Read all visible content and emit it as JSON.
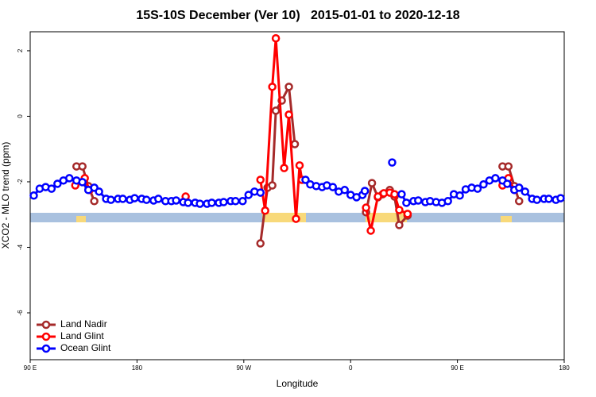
{
  "chart_data": {
    "type": "line",
    "title": "15S-10S December (Ver 10)   2015-01-01 to 2020-12-18",
    "x_label": "Longitude",
    "y_label": "XCO2 - MLO trend (ppm)",
    "xlim": [
      90,
      540
    ],
    "ylim": [
      -7.43,
      2.58
    ],
    "xticks": [
      {
        "value": 90,
        "label": "90 E"
      },
      180,
      {
        "value": 270,
        "label": "90 W"
      },
      {
        "value": 360,
        "label": "0"
      },
      {
        "value": 450,
        "label": "90 E"
      },
      {
        "value": 540,
        "label": "180"
      }
    ],
    "yticks": [
      2,
      0,
      -2,
      -4,
      -6
    ],
    "legend": "bottomleft",
    "series": [
      {
        "name": "Land Nadir",
        "color": "#a52a2a",
        "x": [
          129,
          134,
          139,
          144,
          200,
          284,
          290,
          294,
          297,
          302,
          308,
          313,
          340,
          373,
          378,
          383,
          387,
          393,
          397,
          401,
          408,
          450,
          488,
          493,
          498,
          502
        ],
        "values": [
          -1.53,
          -1.53,
          -2.13,
          -2.59,
          null,
          -3.88,
          -2.18,
          -2.11,
          0.17,
          0.48,
          0.9,
          -0.85,
          null,
          -2.93,
          -2.04,
          -2.47,
          -2.38,
          -2.25,
          -2.45,
          -3.32,
          -3.03,
          null,
          -1.53,
          -1.53,
          -2.13,
          -2.59
        ]
      },
      {
        "name": "Land Glint",
        "color": "#ff0000",
        "x": [
          128,
          136,
          140,
          180,
          221,
          250,
          284,
          288,
          294,
          297,
          304,
          308,
          314,
          317,
          319,
          340,
          373,
          377,
          383,
          388,
          393,
          397,
          401,
          408,
          450,
          488,
          493,
          498
        ],
        "values": [
          -2.11,
          -1.89,
          -2.25,
          null,
          -2.45,
          null,
          -1.94,
          -2.88,
          0.9,
          2.38,
          -1.58,
          0.05,
          -3.13,
          -1.5,
          -1.94,
          null,
          -2.79,
          -3.49,
          -2.45,
          -2.35,
          -2.33,
          -2.38,
          -2.86,
          -2.98,
          null,
          -2.11,
          -1.89,
          -2.25
        ]
      },
      {
        "name": "Ocean Glint",
        "color": "#0000ff",
        "x": [
          93,
          98,
          103,
          108,
          113,
          118,
          123,
          129,
          134,
          139,
          144,
          148,
          154,
          158,
          164,
          168,
          174,
          178,
          184,
          188,
          194,
          198,
          204,
          209,
          213,
          219,
          223,
          229,
          233,
          239,
          243,
          249,
          253,
          259,
          263,
          269,
          274,
          279,
          284,
          300,
          322,
          326,
          331,
          336,
          340,
          345,
          350,
          355,
          360,
          365,
          370,
          372,
          385,
          395,
          399,
          403,
          407,
          413,
          417,
          423,
          427,
          432,
          437,
          442,
          447,
          452,
          457,
          462,
          467,
          472,
          477,
          482,
          488,
          492,
          498,
          502,
          507,
          513,
          517,
          523,
          527,
          533,
          537
        ],
        "values": [
          -2.42,
          -2.21,
          -2.16,
          -2.21,
          -2.06,
          -1.96,
          -1.89,
          -1.96,
          -2.01,
          -2.25,
          -2.18,
          -2.3,
          -2.52,
          -2.55,
          -2.52,
          -2.52,
          -2.55,
          -2.5,
          -2.52,
          -2.55,
          -2.57,
          -2.52,
          -2.59,
          -2.59,
          -2.57,
          -2.62,
          -2.64,
          -2.64,
          -2.67,
          -2.67,
          -2.64,
          -2.64,
          -2.62,
          -2.59,
          -2.59,
          -2.59,
          -2.4,
          -2.3,
          -2.33,
          null,
          -1.94,
          -2.08,
          -2.13,
          -2.16,
          -2.11,
          -2.16,
          -2.3,
          -2.25,
          -2.4,
          -2.47,
          -2.4,
          -2.28,
          null,
          -1.41,
          null,
          -2.38,
          -2.64,
          -2.59,
          -2.57,
          -2.62,
          -2.59,
          -2.62,
          -2.64,
          -2.59,
          -2.38,
          -2.42,
          -2.23,
          -2.18,
          -2.21,
          -2.08,
          -1.96,
          -1.89,
          -1.96,
          -2.06,
          -2.25,
          -2.18,
          -2.3,
          -2.52,
          -2.55,
          -2.52,
          -2.52,
          -2.55,
          -2.5
        ]
      }
    ]
  }
}
